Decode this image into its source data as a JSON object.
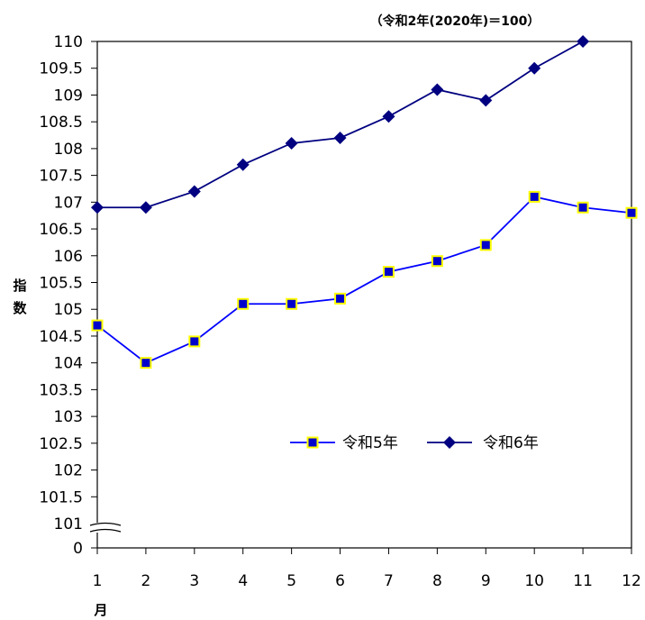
{
  "chart_data": {
    "type": "line",
    "note": "（令和2年(2020年)＝100）",
    "ylabel": "指数",
    "xlabel": "月",
    "categories": [
      "1",
      "2",
      "3",
      "4",
      "5",
      "6",
      "7",
      "8",
      "9",
      "10",
      "11",
      "12"
    ],
    "y_ticks": [
      "110",
      "109.5",
      "109",
      "108.5",
      "108",
      "107.5",
      "107",
      "106.5",
      "106",
      "105.5",
      "105",
      "104.5",
      "104",
      "103.5",
      "103",
      "102.5",
      "102",
      "101.5",
      "101",
      "0"
    ],
    "ylim": [
      101,
      110
    ],
    "axis_break": true,
    "grid": false,
    "legend_position": "bottom-right",
    "series": [
      {
        "name": "令和5年",
        "color": "#0000FF",
        "marker": "square",
        "marker_fill": "#0000CC",
        "marker_edge": "#FFFF00",
        "values": [
          104.7,
          104.0,
          104.4,
          105.1,
          105.1,
          105.2,
          105.7,
          105.9,
          106.2,
          107.1,
          106.9,
          106.8
        ]
      },
      {
        "name": "令和6年",
        "color": "#000080",
        "marker": "diamond",
        "marker_fill": "#000080",
        "values": [
          106.9,
          106.9,
          107.2,
          107.7,
          108.1,
          108.2,
          108.6,
          109.1,
          108.9,
          109.5,
          110.0,
          null
        ]
      }
    ]
  }
}
